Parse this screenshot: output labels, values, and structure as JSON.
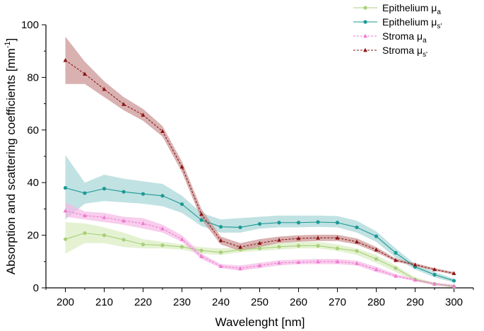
{
  "chart_data": {
    "type": "line",
    "title": "",
    "xlabel": "Wavelenght [nm]",
    "ylabel_main": "Absorption and scattering coefficients [mm",
    "ylabel_sup": "-1",
    "ylabel_close": "]",
    "xlim": [
      195,
      305
    ],
    "ylim": [
      0,
      100
    ],
    "xticks": [
      200,
      210,
      220,
      230,
      240,
      250,
      260,
      270,
      280,
      290,
      300
    ],
    "yticks": [
      0,
      20,
      40,
      60,
      80,
      100
    ],
    "x": [
      200,
      205,
      210,
      215,
      220,
      225,
      230,
      235,
      240,
      245,
      250,
      255,
      260,
      265,
      270,
      275,
      280,
      285,
      290,
      295,
      300
    ],
    "series": [
      {
        "name": "Epithelium μa",
        "legend_main": "Epithelium μ",
        "legend_sub": "a",
        "color": "#a8cf78",
        "band_color": "#d9edbf",
        "marker": "circle",
        "dashed": false,
        "values": [
          18.5,
          20.8,
          20.0,
          18.3,
          16.5,
          16.2,
          15.6,
          14.2,
          13.5,
          14.5,
          15.0,
          15.6,
          16.0,
          16.0,
          15.0,
          14.0,
          11.0,
          7.5,
          3.2,
          1.5,
          0.5
        ],
        "lower": [
          13,
          17,
          17,
          15.5,
          15,
          15,
          14.5,
          13,
          12.5,
          13.5,
          14,
          14.5,
          15,
          15,
          14,
          12.5,
          9.5,
          6,
          2.5,
          1,
          0
        ],
        "upper": [
          25,
          24.5,
          23,
          21,
          18.5,
          17.5,
          16.5,
          15.5,
          15,
          15.5,
          16.5,
          17,
          17.5,
          17.5,
          16.5,
          15,
          12.5,
          8.5,
          4,
          2,
          1
        ]
      },
      {
        "name": "Epithelium μs'",
        "legend_main": "Epithelium μ",
        "legend_sub": "s'",
        "color": "#1b9a95",
        "band_color": "#a7d6d6",
        "marker": "circle",
        "dashed": false,
        "values": [
          38.0,
          36.0,
          37.7,
          36.5,
          35.7,
          35.0,
          31.8,
          25.8,
          23.2,
          23.0,
          24.3,
          24.8,
          24.8,
          25.0,
          24.8,
          23.0,
          19.6,
          13.3,
          8.0,
          5.0,
          2.7
        ],
        "lower": [
          26,
          32,
          33,
          32.5,
          32,
          31,
          28.5,
          23.5,
          21,
          21,
          22.5,
          23,
          23,
          23.2,
          23,
          21,
          17.5,
          11.5,
          7,
          4,
          2
        ],
        "upper": [
          50.5,
          40,
          43,
          41.5,
          40.5,
          39.5,
          35,
          28.5,
          26,
          26.5,
          27,
          27.5,
          27.5,
          27.5,
          27.3,
          25.5,
          21.5,
          15,
          9,
          6,
          3.5
        ]
      },
      {
        "name": "Stroma μa",
        "legend_main": "Stroma μ",
        "legend_sub": "a",
        "color": "#f07ad0",
        "band_color": "#f5b8e6",
        "marker": "triangle",
        "dashed": true,
        "values": [
          29.3,
          27.5,
          26.8,
          25.5,
          24.5,
          22.5,
          18.5,
          12.0,
          8.2,
          7.4,
          8.5,
          9.5,
          9.7,
          10.0,
          10.0,
          9.3,
          7.0,
          4.5,
          3.0,
          1.5,
          0.7
        ],
        "lower": [
          27,
          26,
          25,
          24,
          22.5,
          21,
          17.5,
          11,
          7.5,
          6.5,
          7.5,
          8.5,
          9,
          9,
          9,
          8.5,
          6,
          4,
          2.5,
          1,
          0.2
        ],
        "upper": [
          32.5,
          29,
          28.5,
          27,
          26.5,
          24,
          20,
          13,
          9,
          8.5,
          9.5,
          10.5,
          10.8,
          11,
          11,
          10.3,
          8,
          5.2,
          3.5,
          2,
          1.2
        ]
      },
      {
        "name": "Stroma μs'",
        "legend_main": "Stroma μ",
        "legend_sub": "s'",
        "color": "#8c1414",
        "band_color": "#c99090",
        "marker": "triangle",
        "dashed": true,
        "values": [
          86.5,
          81.3,
          75.5,
          69.8,
          65.7,
          59.5,
          46.0,
          28.0,
          18.0,
          15.5,
          17.0,
          18.2,
          18.8,
          19.0,
          19.0,
          17.5,
          14.5,
          10.5,
          8.8,
          7.0,
          5.5
        ],
        "lower": [
          77.5,
          77.5,
          72.5,
          67.5,
          63.5,
          57.5,
          44,
          26,
          16.5,
          14,
          15.5,
          17,
          17.5,
          17.8,
          17.8,
          16.5,
          13.5,
          10,
          8.2,
          6.5,
          5
        ],
        "upper": [
          95.5,
          86,
          78.5,
          72.5,
          68,
          61.5,
          48,
          30,
          19.5,
          17,
          18.5,
          19.5,
          20,
          20.2,
          20.2,
          18.8,
          15.5,
          11.2,
          9.4,
          7.5,
          6
        ]
      }
    ],
    "legend_position": "top-right"
  }
}
